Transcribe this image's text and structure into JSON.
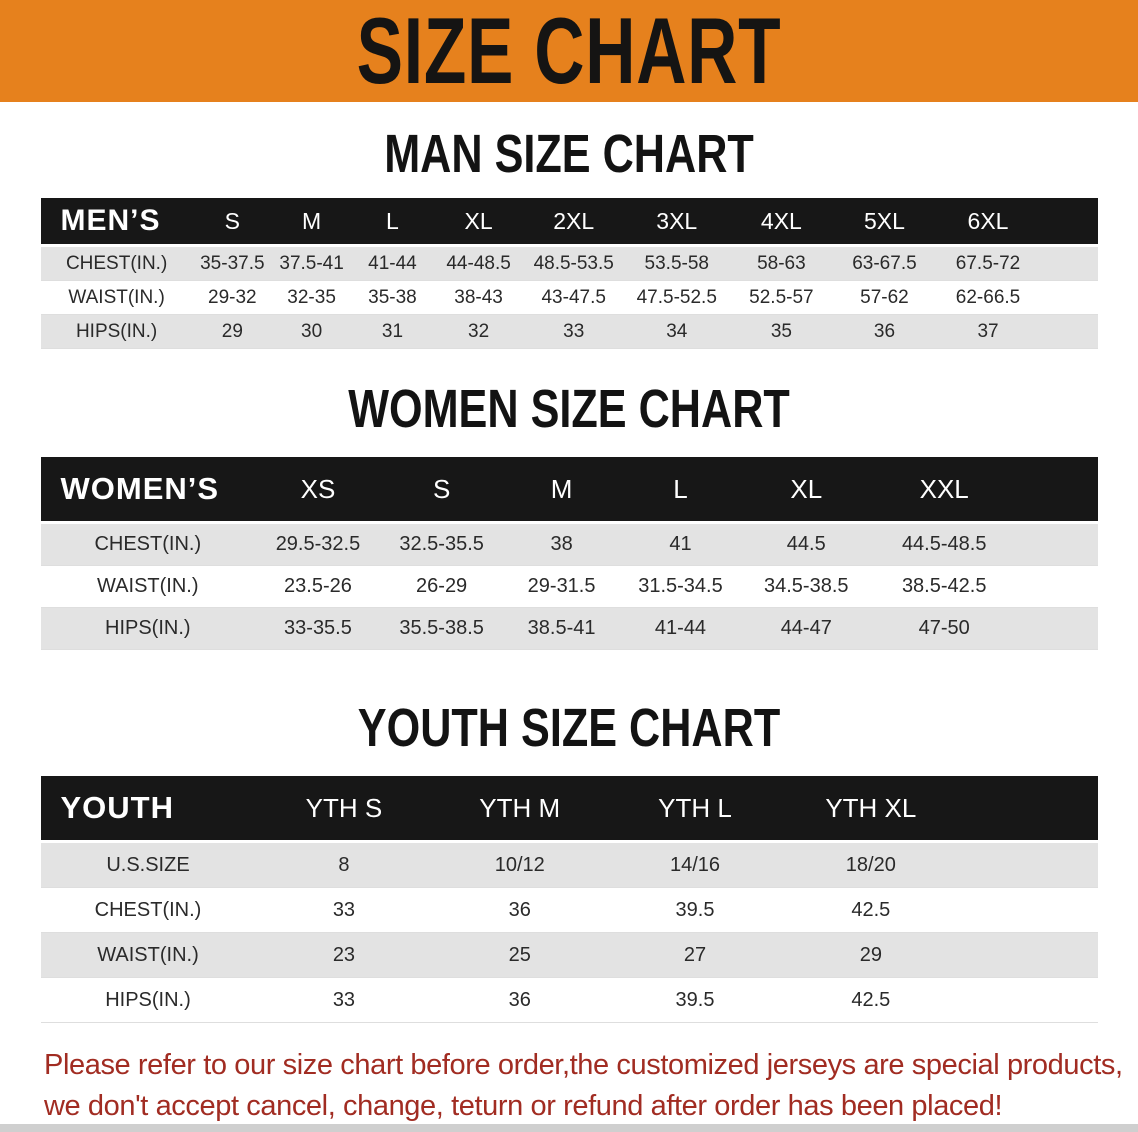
{
  "banner": {
    "title": "SIZE CHART",
    "background_color": "#E6811D",
    "text_color": "#151413"
  },
  "sections": {
    "men": {
      "title": "MAN SIZE CHART",
      "table": {
        "corner": "MEN’S",
        "columns": [
          "S",
          "M",
          "L",
          "XL",
          "2XL",
          "3XL",
          "4XL",
          "5XL",
          "6XL"
        ],
        "rows": [
          {
            "label": "CHEST(IN.)",
            "values": [
              "35-37.5",
              "37.5-41",
              "41-44",
              "44-48.5",
              "48.5-53.5",
              "53.5-58",
              "58-63",
              "63-67.5",
              "67.5-72"
            ]
          },
          {
            "label": "WAIST(IN.)",
            "values": [
              "29-32",
              "32-35",
              "35-38",
              "38-43",
              "43-47.5",
              "47.5-52.5",
              "52.5-57",
              "57-62",
              "62-66.5"
            ]
          },
          {
            "label": "HIPS(IN.)",
            "values": [
              "29",
              "30",
              "31",
              "32",
              "33",
              "34",
              "35",
              "36",
              "37"
            ]
          }
        ]
      }
    },
    "women": {
      "title": "WOMEN SIZE CHART",
      "table": {
        "corner": "WOMEN’S",
        "columns": [
          "XS",
          "S",
          "M",
          "L",
          "XL",
          "XXL"
        ],
        "rows": [
          {
            "label": "CHEST(IN.)",
            "values": [
              "29.5-32.5",
              "32.5-35.5",
              "38",
              "41",
              "44.5",
              "44.5-48.5"
            ]
          },
          {
            "label": "WAIST(IN.)",
            "values": [
              "23.5-26",
              "26-29",
              "29-31.5",
              "31.5-34.5",
              "34.5-38.5",
              "38.5-42.5"
            ]
          },
          {
            "label": "HIPS(IN.)",
            "values": [
              "33-35.5",
              "35.5-38.5",
              "38.5-41",
              "41-44",
              "44-47",
              "47-50"
            ]
          }
        ]
      }
    },
    "youth": {
      "title": "YOUTH SIZE CHART",
      "table": {
        "corner": "YOUTH",
        "columns": [
          "YTH S",
          "YTH M",
          "YTH L",
          "YTH XL"
        ],
        "rows": [
          {
            "label": "U.S.SIZE",
            "values": [
              "8",
              "10/12",
              "14/16",
              "18/20"
            ]
          },
          {
            "label": "CHEST(IN.)",
            "values": [
              "33",
              "36",
              "39.5",
              "42.5"
            ]
          },
          {
            "label": "WAIST(IN.)",
            "values": [
              "23",
              "25",
              "27",
              "29"
            ]
          },
          {
            "label": "HIPS(IN.)",
            "values": [
              "33",
              "36",
              "39.5",
              "42.5"
            ]
          }
        ]
      }
    }
  },
  "footnote": {
    "line1": "Please refer to our size chart before order,the customized jerseys are special products,",
    "line2": "we don't accept cancel, change, teturn or refund after order has been placed!",
    "text_color": "#A12C22"
  }
}
